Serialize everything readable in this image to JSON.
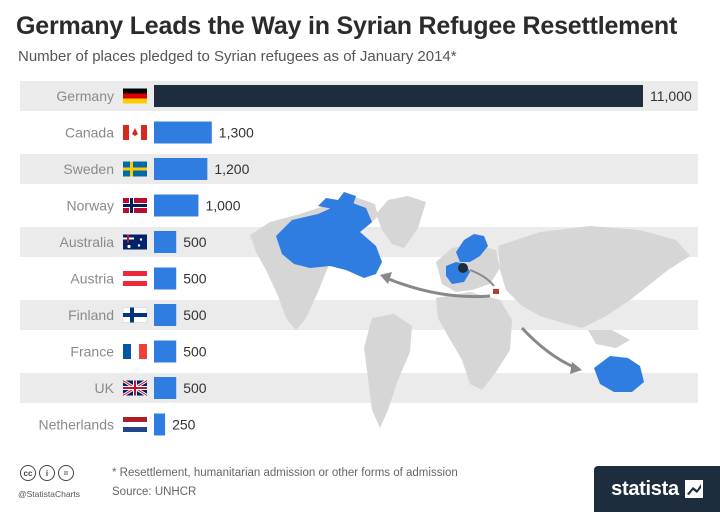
{
  "header": {
    "title": "Germany Leads the Way in Syrian Refugee Resettlement",
    "subtitle": "Number of places pledged to Syrian refugees as of January 2014*"
  },
  "chart_data": {
    "type": "bar",
    "orientation": "horizontal",
    "title": "Germany Leads the Way in Syrian Refugee Resettlement",
    "subtitle": "Number of places pledged to Syrian refugees as of January 2014*",
    "categories": [
      "Germany",
      "Canada",
      "Sweden",
      "Norway",
      "Australia",
      "Austria",
      "Finland",
      "France",
      "UK",
      "Netherlands"
    ],
    "values": [
      11000,
      1300,
      1200,
      1000,
      500,
      500,
      500,
      500,
      500,
      250
    ],
    "value_labels": [
      "11,000",
      "1,300",
      "1,200",
      "1,000",
      "500",
      "500",
      "500",
      "500",
      "500",
      "250"
    ],
    "xlim": [
      0,
      11000
    ],
    "grid": false,
    "legend": "none",
    "highlight_color": "#1d2d3e",
    "bar_color": "#2f7de1",
    "background_map": "world map with pledging countries highlighted in blue, Germany in dark, arrows from Syria to Canada and Australia"
  },
  "footer": {
    "note": "* Resettlement, humanitarian admission or other forms of admission",
    "source": "Source: UNHCR",
    "handle": "@StatistaCharts",
    "brand": "statista",
    "cc_icons": [
      "cc",
      "i",
      "="
    ]
  },
  "colors": {
    "row_band": "#ebebeb",
    "map_land": "#d6d6d6",
    "map_highlight": "#2f7de1",
    "germany": "#1d2d3e"
  }
}
